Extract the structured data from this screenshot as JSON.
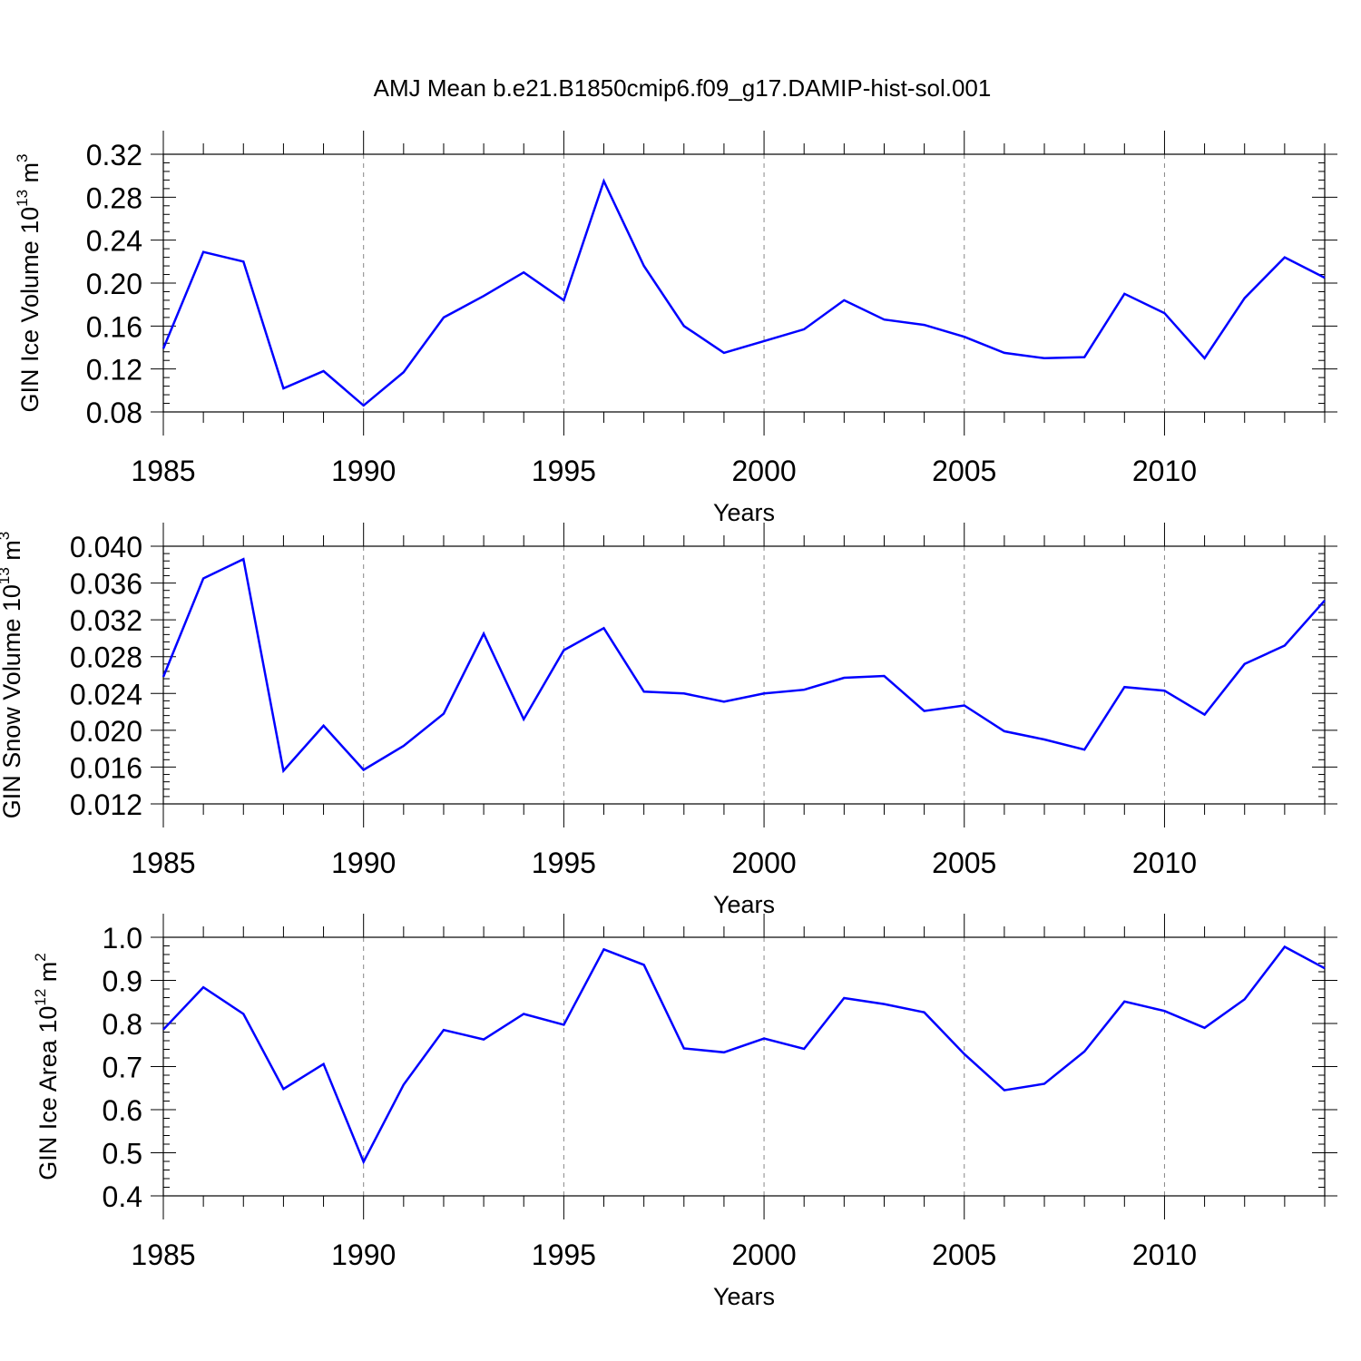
{
  "figure": {
    "title": "AMJ Mean b.e21.B1850cmip6.f09_g17.DAMIP-hist-sol.001",
    "line_color": "#0000ff"
  },
  "chart_data": [
    {
      "type": "line",
      "title": "",
      "xlabel": "Years",
      "ylabel": "GIN Ice Volume 10",
      "ylabel_exp": "13",
      "ylabel_unit": " m",
      "ylabel_unit_exp": "3",
      "xlim": [
        1985,
        2014
      ],
      "ylim": [
        0.08,
        0.32
      ],
      "xticks": [
        1985,
        1990,
        1995,
        2000,
        2005,
        2010
      ],
      "xtick_labels": [
        "1985",
        "1990",
        "1995",
        "2000",
        "2005",
        "2010"
      ],
      "yticks": [
        0.08,
        0.12,
        0.16,
        0.2,
        0.24,
        0.28,
        0.32
      ],
      "ytick_labels": [
        "0.08",
        "0.12",
        "0.16",
        "0.20",
        "0.24",
        "0.28",
        "0.32"
      ],
      "minor_y_step": 0.008,
      "gridlines_x": [
        1990,
        1995,
        2000,
        2005,
        2010
      ],
      "series": [
        {
          "name": "GIN Ice Volume",
          "x": [
            1985,
            1986,
            1987,
            1988,
            1989,
            1990,
            1991,
            1992,
            1993,
            1994,
            1995,
            1996,
            1997,
            1998,
            1999,
            2000,
            2001,
            2002,
            2003,
            2004,
            2005,
            2006,
            2007,
            2008,
            2009,
            2010,
            2011,
            2012,
            2013,
            2014
          ],
          "values": [
            0.139,
            0.229,
            0.22,
            0.102,
            0.118,
            0.086,
            0.117,
            0.168,
            0.188,
            0.21,
            0.184,
            0.295,
            0.216,
            0.16,
            0.135,
            0.146,
            0.157,
            0.184,
            0.166,
            0.161,
            0.15,
            0.135,
            0.13,
            0.131,
            0.19,
            0.172,
            0.13,
            0.186,
            0.224,
            0.205
          ]
        }
      ]
    },
    {
      "type": "line",
      "title": "",
      "xlabel": "Years",
      "ylabel": "GIN Snow Volume 10",
      "ylabel_exp": "13",
      "ylabel_unit": " m",
      "ylabel_unit_exp": "3",
      "xlim": [
        1985,
        2014
      ],
      "ylim": [
        0.012,
        0.04
      ],
      "xticks": [
        1985,
        1990,
        1995,
        2000,
        2005,
        2010
      ],
      "xtick_labels": [
        "1985",
        "1990",
        "1995",
        "2000",
        "2005",
        "2010"
      ],
      "yticks": [
        0.012,
        0.016,
        0.02,
        0.024,
        0.028,
        0.032,
        0.036,
        0.04
      ],
      "ytick_labels": [
        "0.012",
        "0.016",
        "0.020",
        "0.024",
        "0.028",
        "0.032",
        "0.036",
        "0.040"
      ],
      "minor_y_step": 0.0008,
      "gridlines_x": [
        1990,
        1995,
        2000,
        2005,
        2010
      ],
      "series": [
        {
          "name": "GIN Snow Volume",
          "x": [
            1985,
            1986,
            1987,
            1988,
            1989,
            1990,
            1991,
            1992,
            1993,
            1994,
            1995,
            1996,
            1997,
            1998,
            1999,
            2000,
            2001,
            2002,
            2003,
            2004,
            2005,
            2006,
            2007,
            2008,
            2009,
            2010,
            2011,
            2012,
            2013,
            2014
          ],
          "values": [
            0.0258,
            0.0365,
            0.0386,
            0.0156,
            0.0205,
            0.0157,
            0.0183,
            0.0218,
            0.0305,
            0.0212,
            0.0287,
            0.0311,
            0.0242,
            0.024,
            0.0231,
            0.024,
            0.0244,
            0.0257,
            0.0259,
            0.0221,
            0.0227,
            0.0199,
            0.019,
            0.0179,
            0.0247,
            0.0243,
            0.0217,
            0.0272,
            0.0292,
            0.0341
          ]
        }
      ]
    },
    {
      "type": "line",
      "title": "",
      "xlabel": "Years",
      "ylabel": "GIN Ice Area 10",
      "ylabel_exp": "12",
      "ylabel_unit": " m",
      "ylabel_unit_exp": "2",
      "xlim": [
        1985,
        2014
      ],
      "ylim": [
        0.4,
        1.0
      ],
      "xticks": [
        1985,
        1990,
        1995,
        2000,
        2005,
        2010
      ],
      "xtick_labels": [
        "1985",
        "1990",
        "1995",
        "2000",
        "2005",
        "2010"
      ],
      "yticks": [
        0.4,
        0.5,
        0.6,
        0.7,
        0.8,
        0.9,
        1.0
      ],
      "ytick_labels": [
        "0.4",
        "0.5",
        "0.6",
        "0.7",
        "0.8",
        "0.9",
        "1.0"
      ],
      "minor_y_step": 0.02,
      "gridlines_x": [
        1990,
        1995,
        2000,
        2005,
        2010
      ],
      "series": [
        {
          "name": "GIN Ice Area",
          "x": [
            1985,
            1986,
            1987,
            1988,
            1989,
            1990,
            1991,
            1992,
            1993,
            1994,
            1995,
            1996,
            1997,
            1998,
            1999,
            2000,
            2001,
            2002,
            2003,
            2004,
            2005,
            2006,
            2007,
            2008,
            2009,
            2010,
            2011,
            2012,
            2013,
            2014
          ],
          "values": [
            0.786,
            0.884,
            0.822,
            0.648,
            0.706,
            0.479,
            0.658,
            0.785,
            0.763,
            0.822,
            0.797,
            0.972,
            0.936,
            0.742,
            0.733,
            0.765,
            0.741,
            0.859,
            0.845,
            0.826,
            0.729,
            0.645,
            0.66,
            0.735,
            0.851,
            0.829,
            0.79,
            0.856,
            0.978,
            0.928
          ]
        }
      ]
    }
  ]
}
